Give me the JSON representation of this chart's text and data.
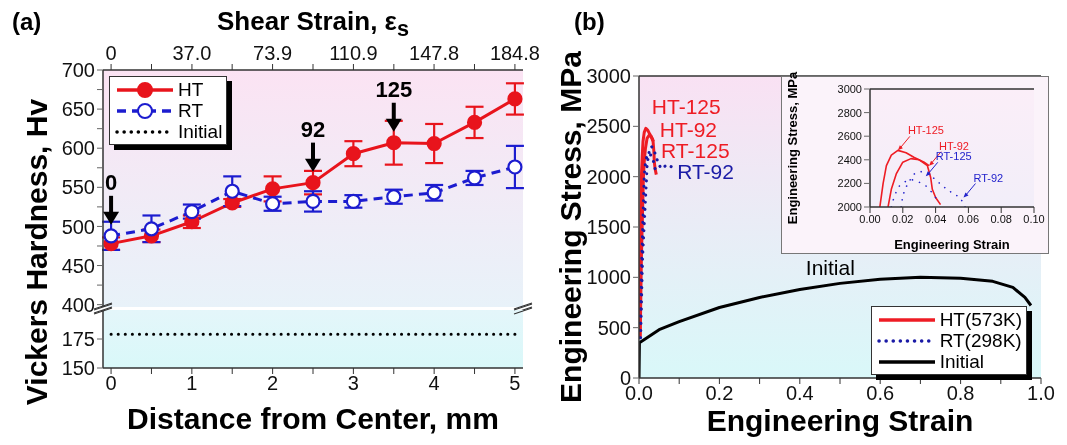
{
  "chart_data": [
    {
      "type": "line",
      "title": "(a)",
      "ylabel": "Vickers Hardness, Hv",
      "x2label": "Shear Strain, ε$_{s}$",
      "x": [
        0,
        0.5,
        1,
        1.5,
        2,
        2.5,
        3,
        3.5,
        4,
        4.5,
        5
      ],
      "xlim": [
        -0.1,
        5.1
      ],
      "xticks": [
        0,
        1,
        2,
        3,
        4,
        5
      ],
      "x2lim": [
        -3.7,
        188.5
      ],
      "x2ticks": [
        0,
        {
          "value": 18.5,
          "label": null
        },
        {
          "value": 37,
          "label": "37.0"
        },
        {
          "value": 55.4,
          "label": null
        },
        73.9,
        {
          "value": 92.4,
          "label": null
        },
        110.9,
        {
          "value": 129.4,
          "label": null
        },
        147.8,
        {
          "value": 166.3,
          "label": null
        },
        184.8
      ],
      "ylim": [
        397,
        700
      ],
      "yticks": [
        400,
        {
          "value": 425,
          "label": null
        },
        450,
        {
          "value": 475,
          "label": null
        },
        500,
        {
          "value": 525,
          "label": null
        },
        550,
        {
          "value": 575,
          "label": null
        },
        600,
        {
          "value": 625,
          "label": null
        },
        650,
        {
          "value": 675,
          "label": null
        },
        700
      ],
      "tick_labels": "y",
      "marker": "circle",
      "legend": "top left",
      "annotations": [
        {
          "text": "0",
          "x": 0,
          "y": 488
        },
        {
          "text": "92",
          "x": 2.5,
          "y": 556
        },
        {
          "text": "125",
          "x": 3.5,
          "y": 607
        }
      ],
      "series": [
        {
          "name": "HT",
          "color": "#e8141c",
          "line_style": "solid",
          "values": [
            478,
            488,
            506,
            530,
            548,
            556,
            593,
            607,
            606,
            633,
            663
          ],
          "errors": [
            8,
            8,
            8,
            5,
            16,
            15,
            16,
            28,
            25,
            20,
            20
          ]
        },
        {
          "name": "RT",
          "color": "#1c1ccf",
          "line_style": "dashed",
          "values": [
            488,
            497,
            519,
            545,
            529,
            532,
            532,
            538,
            543,
            562,
            576
          ],
          "errors": [
            18,
            17,
            9,
            19,
            9,
            13,
            8,
            9,
            10,
            9,
            27
          ]
        }
      ]
    },
    {
      "type": "line",
      "xlabel": "Distance from Center, mm",
      "xlim": [
        -0.1,
        5.1
      ],
      "xticks": [
        0,
        {
          "value": 0.5,
          "label": null
        },
        1,
        {
          "value": 1.5,
          "label": null
        },
        2,
        {
          "value": 2.5,
          "label": null
        },
        3,
        {
          "value": 3.5,
          "label": null
        },
        4,
        {
          "value": 4.5,
          "label": null
        },
        5
      ],
      "ylim": [
        150,
        200
      ],
      "yticks": [
        150,
        175
      ],
      "legend": "top left",
      "series": [
        {
          "name": "Initial",
          "color": "#000000",
          "line_style": "dotted",
          "x": [
            0,
            5
          ],
          "values": [
            179,
            179
          ]
        }
      ]
    },
    {
      "type": "line",
      "title": "(b)",
      "xlabel": "Engineering Strain",
      "ylabel": "Engineering Stress, MPa",
      "xlim": [
        0,
        1
      ],
      "xticks": [
        {
          "value": 0,
          "label": "0.0"
        },
        {
          "value": 0.1,
          "label": null
        },
        0.2,
        {
          "value": 0.3,
          "label": null
        },
        0.4,
        {
          "value": 0.5,
          "label": null
        },
        0.6,
        {
          "value": 0.7,
          "label": null
        },
        0.8,
        {
          "value": 0.9,
          "label": null
        },
        {
          "value": 1,
          "label": "1.0"
        }
      ],
      "ylim": [
        0,
        3000
      ],
      "yticks": [
        0,
        500,
        1000,
        1500,
        2000,
        2500,
        3000
      ],
      "legend": "bottom right",
      "annotations": [
        {
          "text": "HT-125",
          "x": 0.017,
          "y": 2480
        },
        {
          "text": "HT-92",
          "x": 0.037,
          "y": 2250
        },
        {
          "text": "RT-125",
          "x": 0.04,
          "y": 2080
        },
        {
          "text": "RT-92",
          "x": 0.08,
          "y": 2100
        },
        {
          "text": "Initial",
          "x": 0.4,
          "y": 880
        }
      ],
      "series": [
        {
          "name": "HT(573K)",
          "color": "#ee1c24",
          "line_style": "solid",
          "x": [
            0.002,
            0.004,
            0.006,
            0.008,
            0.01,
            0.013,
            0.017,
            0.022,
            0.027,
            0.033,
            0.036
          ],
          "values": [
            400,
            1200,
            2000,
            2200,
            2350,
            2440,
            2480,
            2460,
            2420,
            2380,
            2350
          ]
        },
        {
          "color": "#ee1c24",
          "line_style": "solid",
          "x": [
            0.003,
            0.006,
            0.011,
            0.013,
            0.016,
            0.02,
            0.025,
            0.03,
            0.035,
            0.037,
            0.038,
            0.04,
            0.043
          ],
          "values": [
            400,
            1200,
            2000,
            2150,
            2280,
            2380,
            2410,
            2400,
            2350,
            2250,
            2150,
            2080,
            2020
          ]
        },
        {
          "name": "RT(298K)",
          "color": "#1a1aa6",
          "line_style": "dotted",
          "x": [
            0.003,
            0.007,
            0.013,
            0.015,
            0.018,
            0.022,
            0.026,
            0.03,
            0.034,
            0.038,
            0.04
          ],
          "values": [
            400,
            1200,
            2000,
            2100,
            2180,
            2220,
            2230,
            2210,
            2180,
            2120,
            2080
          ]
        },
        {
          "color": "#1a1aa6",
          "line_style": "dotted",
          "x": [
            0.004,
            0.009,
            0.019,
            0.02,
            0.023,
            0.027,
            0.031,
            0.036,
            0.04,
            0.045,
            0.05,
            0.055,
            0.06,
            0.07,
            0.08
          ],
          "values": [
            400,
            1200,
            2000,
            2100,
            2200,
            2280,
            2300,
            2280,
            2230,
            2170,
            2120,
            2080,
            2090,
            2120,
            2100
          ]
        },
        {
          "name": "Initial",
          "color": "#000000",
          "line_style": "solid",
          "x": [
            0,
            0.001,
            0.02,
            0.05,
            0.1,
            0.2,
            0.3,
            0.4,
            0.5,
            0.6,
            0.7,
            0.8,
            0.88,
            0.93,
            0.96,
            0.975
          ],
          "values": [
            0,
            350,
            400,
            480,
            560,
            700,
            800,
            880,
            940,
            980,
            1000,
            990,
            960,
            900,
            800,
            720
          ]
        }
      ]
    },
    {
      "type": "line",
      "xlabel": "Engineering Strain",
      "ylabel": "Engineering Stress, MPa",
      "xlim": [
        0,
        0.1
      ],
      "xticks": [
        {
          "value": 0,
          "label": "0.00"
        },
        {
          "value": 0.02,
          "label": "0.02"
        },
        {
          "value": 0.04,
          "label": "0.04"
        },
        {
          "value": 0.06,
          "label": "0.06"
        },
        {
          "value": 0.08,
          "label": "0.08"
        },
        {
          "value": 0.1,
          "label": "0.10"
        }
      ],
      "ylim": [
        2000,
        3000
      ],
      "yticks": [
        2000,
        2200,
        2400,
        2600,
        2800,
        3000
      ],
      "annotations": [
        {
          "text": "HT-125",
          "x": 0.017,
          "y": 2480
        },
        {
          "text": "HT-92",
          "x": 0.036,
          "y": 2350
        },
        {
          "text": "RT-125",
          "x": 0.034,
          "y": 2260
        },
        {
          "text": "RT-92",
          "x": 0.057,
          "y": 2080
        }
      ],
      "series": [
        {
          "color": "#ee1c24",
          "line_style": "solid",
          "x": [
            0.006,
            0.008,
            0.01,
            0.013,
            0.017,
            0.022,
            0.027,
            0.033,
            0.036
          ],
          "values": [
            2000,
            2200,
            2350,
            2440,
            2480,
            2460,
            2420,
            2380,
            2350
          ]
        },
        {
          "color": "#ee1c24",
          "line_style": "solid",
          "x": [
            0.011,
            0.013,
            0.016,
            0.02,
            0.025,
            0.03,
            0.035,
            0.037,
            0.038,
            0.04,
            0.043
          ],
          "values": [
            2000,
            2150,
            2280,
            2380,
            2410,
            2400,
            2350,
            2250,
            2150,
            2080,
            2020
          ]
        },
        {
          "color": "#2222cc",
          "line_style": "dotted",
          "x": [
            0.013,
            0.015,
            0.018,
            0.022,
            0.026,
            0.03,
            0.034,
            0.038,
            0.04
          ],
          "values": [
            2000,
            2100,
            2180,
            2220,
            2230,
            2210,
            2180,
            2120,
            2080
          ]
        },
        {
          "color": "#2222cc",
          "line_style": "dotted",
          "x": [
            0.019,
            0.02,
            0.023,
            0.027,
            0.031,
            0.036,
            0.04,
            0.045,
            0.05,
            0.055,
            0.058
          ],
          "values": [
            2000,
            2100,
            2200,
            2280,
            2300,
            2280,
            2230,
            2170,
            2120,
            2080,
            2000
          ]
        }
      ]
    }
  ]
}
